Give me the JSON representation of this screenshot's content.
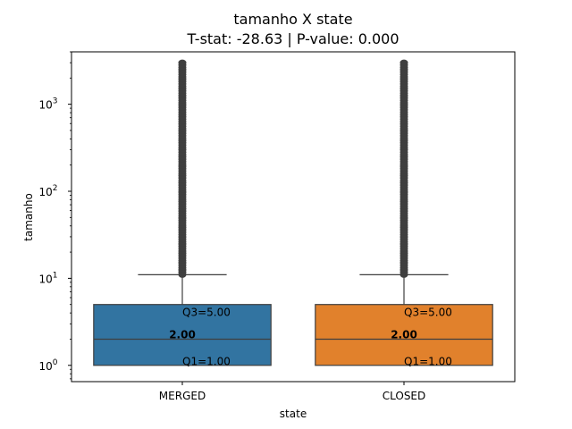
{
  "chart_data": {
    "type": "box",
    "title": "tamanho X state",
    "subtitle": "T-stat: -28.63 | P-value: 0.000",
    "xlabel": "state",
    "ylabel": "tamanho",
    "yscale": "log",
    "ylim": [
      0.65,
      4000
    ],
    "yticks": [
      {
        "value": 1,
        "base": "10",
        "exp": "0"
      },
      {
        "value": 10,
        "base": "10",
        "exp": "1"
      },
      {
        "value": 100,
        "base": "10",
        "exp": "2"
      },
      {
        "value": 1000,
        "base": "10",
        "exp": "3"
      }
    ],
    "categories": [
      "MERGED",
      "CLOSED"
    ],
    "series": [
      {
        "category": "MERGED",
        "q1": 1.0,
        "median": 2.0,
        "q3": 5.0,
        "whisker_low": 1.0,
        "whisker_high": 11,
        "outliers_from": 11,
        "outliers_to": 3000,
        "color": "#3274a1",
        "q1_label": "Q1=1.00",
        "median_label": "2.00",
        "q3_label": "Q3=5.00"
      },
      {
        "category": "CLOSED",
        "q1": 1.0,
        "median": 2.0,
        "q3": 5.0,
        "whisker_low": 1.0,
        "whisker_high": 11,
        "outliers_from": 11,
        "outliers_to": 3000,
        "color": "#e1812c",
        "q1_label": "Q1=1.00",
        "median_label": "2.00",
        "q3_label": "Q3=5.00"
      }
    ],
    "grid": false,
    "legend": "none"
  }
}
